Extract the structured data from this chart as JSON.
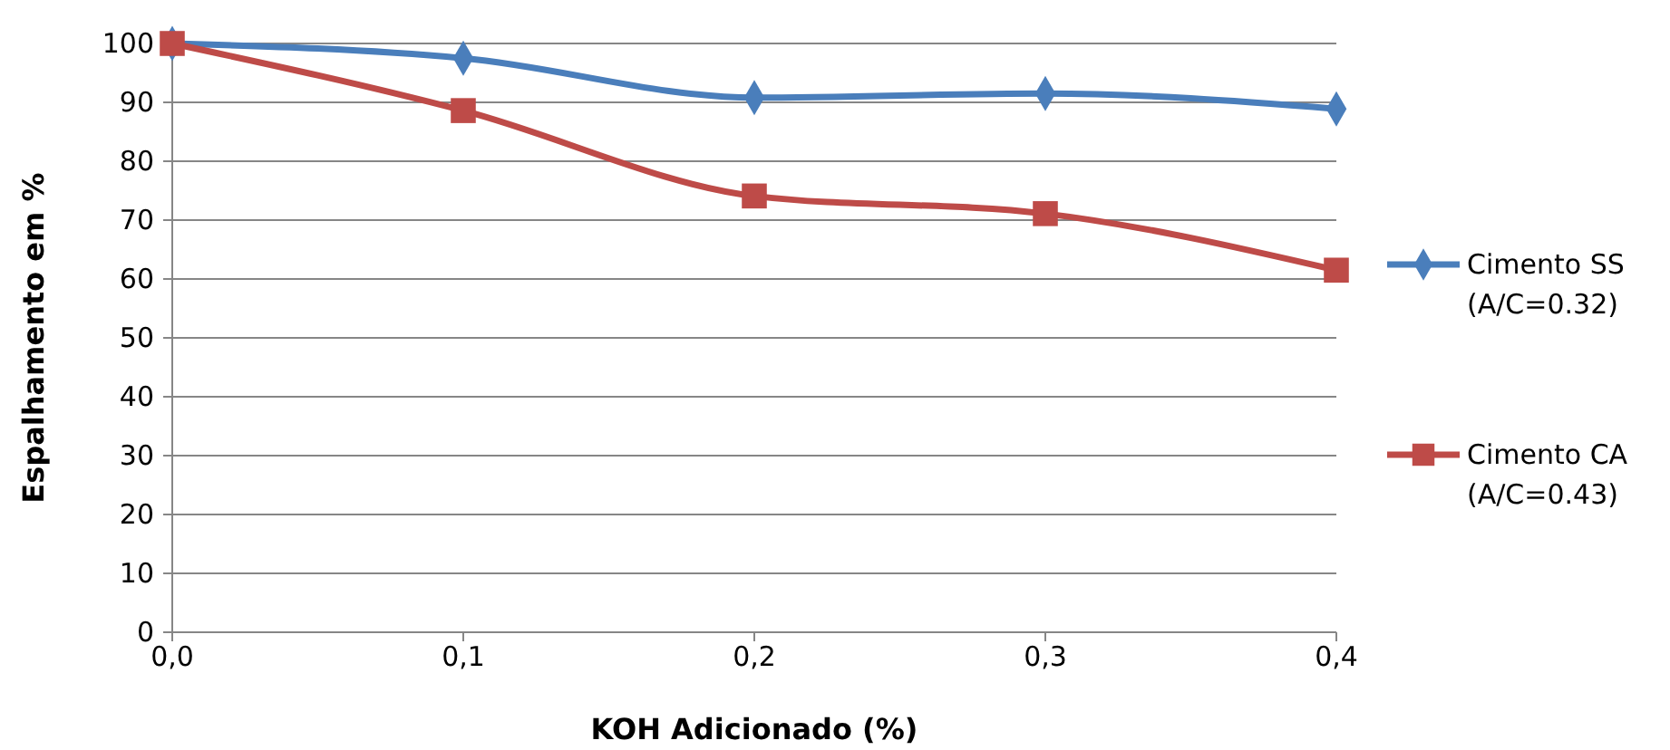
{
  "chart_data": {
    "type": "line",
    "xlabel": "KOH Adicionado (%)",
    "ylabel": "Espalhamento em %",
    "x": [
      0,
      0.1,
      0.2,
      0.3,
      0.4
    ],
    "series": [
      {
        "name": "Cimento SS (A/C=0.32)",
        "color": "#4a7ebb",
        "marker": "diamond",
        "values": [
          100,
          97.5,
          90.8,
          91.5,
          88.9
        ]
      },
      {
        "name": "Cimento CA (A/C=0.43)",
        "color": "#be4b48",
        "marker": "square",
        "values": [
          100,
          88.6,
          74.1,
          71.1,
          61.5
        ]
      }
    ],
    "xlim": [
      0,
      0.4
    ],
    "xticks": [
      {
        "value": 0,
        "label": "0,0"
      },
      {
        "value": 0.1,
        "label": "0,1"
      },
      {
        "value": 0.2,
        "label": "0,2"
      },
      {
        "value": 0.3,
        "label": "0,3"
      },
      {
        "value": 0.4,
        "label": "0,4"
      }
    ],
    "ylim": [
      0,
      100
    ],
    "yticks": [
      0,
      10,
      20,
      30,
      40,
      50,
      60,
      70,
      80,
      90,
      100
    ],
    "grid": "y",
    "legend": "right"
  }
}
